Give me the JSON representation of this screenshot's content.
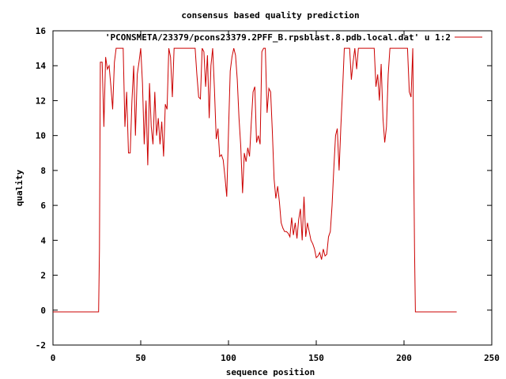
{
  "chart_data": {
    "type": "line",
    "title": "consensus based quality prediction",
    "xlabel": "sequence position",
    "ylabel": "quality",
    "xlim": [
      0,
      250
    ],
    "ylim": [
      -2,
      16
    ],
    "x_ticks": [
      "0",
      "50",
      "100",
      "150",
      "200",
      "250"
    ],
    "y_ticks": [
      "-2",
      "0",
      "2",
      "4",
      "6",
      "8",
      "10",
      "12",
      "14",
      "16"
    ],
    "legend_position": "top-right",
    "grid": false,
    "series": [
      {
        "name": "'PCONSMETA/23379/pcons23379.2PFF_B.rpsblast.8.pdb.local.dat' u 1:2",
        "color": "#cc0000",
        "points": [
          [
            0,
            -0.1
          ],
          [
            26,
            -0.1
          ],
          [
            26.5,
            3.5
          ],
          [
            27,
            14.2
          ],
          [
            28,
            14.2
          ],
          [
            29,
            10.5
          ],
          [
            30,
            14.5
          ],
          [
            31,
            13.8
          ],
          [
            32,
            14
          ],
          [
            33,
            12.8
          ],
          [
            34,
            11.5
          ],
          [
            35,
            14.2
          ],
          [
            36,
            15
          ],
          [
            40,
            15
          ],
          [
            41,
            10.5
          ],
          [
            42,
            12.5
          ],
          [
            43,
            9
          ],
          [
            44,
            9
          ],
          [
            45,
            12
          ],
          [
            46,
            14
          ],
          [
            47,
            10
          ],
          [
            48,
            13.5
          ],
          [
            49,
            14.2
          ],
          [
            50,
            15
          ],
          [
            51,
            13
          ],
          [
            52,
            9.5
          ],
          [
            53,
            12
          ],
          [
            54,
            8.3
          ],
          [
            55,
            13
          ],
          [
            56,
            10.5
          ],
          [
            57,
            9.5
          ],
          [
            58,
            12.5
          ],
          [
            59,
            10
          ],
          [
            60,
            11
          ],
          [
            61,
            9.5
          ],
          [
            62,
            10.8
          ],
          [
            63,
            8.8
          ],
          [
            64,
            11.8
          ],
          [
            65,
            11.5
          ],
          [
            66,
            15
          ],
          [
            67,
            14.5
          ],
          [
            68,
            12.2
          ],
          [
            69,
            15
          ],
          [
            81,
            15
          ],
          [
            82,
            13.5
          ],
          [
            83,
            12.2
          ],
          [
            84,
            12.1
          ],
          [
            85,
            15
          ],
          [
            86,
            14.8
          ],
          [
            87,
            12.8
          ],
          [
            88,
            14.6
          ],
          [
            89,
            11
          ],
          [
            90,
            14
          ],
          [
            91,
            15
          ],
          [
            92,
            12.7
          ],
          [
            93,
            9.8
          ],
          [
            94,
            10.4
          ],
          [
            95,
            8.8
          ],
          [
            96,
            8.9
          ],
          [
            97,
            8.6
          ],
          [
            98,
            7.6
          ],
          [
            99,
            6.5
          ],
          [
            100,
            10.2
          ],
          [
            101,
            13.7
          ],
          [
            102,
            14.5
          ],
          [
            103,
            15
          ],
          [
            104,
            14.6
          ],
          [
            105,
            13.2
          ],
          [
            106,
            11
          ],
          [
            107,
            9.4
          ],
          [
            108,
            6.7
          ],
          [
            109,
            9
          ],
          [
            110,
            8.5
          ],
          [
            111,
            9.3
          ],
          [
            112,
            8.8
          ],
          [
            113,
            10.8
          ],
          [
            114,
            12.5
          ],
          [
            115,
            12.8
          ],
          [
            116,
            9.6
          ],
          [
            117,
            10
          ],
          [
            118,
            9.5
          ],
          [
            119,
            14.8
          ],
          [
            120,
            15
          ],
          [
            121,
            15
          ],
          [
            122,
            11.3
          ],
          [
            123,
            12.7
          ],
          [
            124,
            12.5
          ],
          [
            125,
            10.2
          ],
          [
            126,
            7.5
          ],
          [
            127,
            6.4
          ],
          [
            128,
            7.1
          ],
          [
            129,
            6.2
          ],
          [
            130,
            5
          ],
          [
            131,
            4.7
          ],
          [
            132,
            4.5
          ],
          [
            133,
            4.5
          ],
          [
            134,
            4.4
          ],
          [
            135,
            4.2
          ],
          [
            136,
            5.3
          ],
          [
            137,
            4.3
          ],
          [
            138,
            5
          ],
          [
            139,
            4.1
          ],
          [
            140,
            5.2
          ],
          [
            141,
            5.8
          ],
          [
            142,
            4
          ],
          [
            143,
            6.5
          ],
          [
            144,
            4.2
          ],
          [
            145,
            5
          ],
          [
            146,
            4.5
          ],
          [
            147,
            4
          ],
          [
            148,
            3.8
          ],
          [
            149,
            3.5
          ],
          [
            150,
            3
          ],
          [
            151,
            3.1
          ],
          [
            152,
            3.3
          ],
          [
            153,
            2.9
          ],
          [
            154,
            3.5
          ],
          [
            155,
            3.1
          ],
          [
            156,
            3.2
          ],
          [
            157,
            4.2
          ],
          [
            158,
            4.5
          ],
          [
            159,
            6
          ],
          [
            160,
            8.1
          ],
          [
            161,
            10
          ],
          [
            162,
            10.4
          ],
          [
            163,
            8
          ],
          [
            164,
            10.5
          ],
          [
            165,
            12.6
          ],
          [
            166,
            15
          ],
          [
            169,
            15
          ],
          [
            170,
            13.2
          ],
          [
            171,
            14.2
          ],
          [
            172,
            15
          ],
          [
            173,
            13.8
          ],
          [
            174,
            15
          ],
          [
            183,
            15
          ],
          [
            184,
            12.8
          ],
          [
            185,
            13.5
          ],
          [
            186,
            12
          ],
          [
            187,
            14.1
          ],
          [
            188,
            11
          ],
          [
            189,
            9.6
          ],
          [
            190,
            10.5
          ],
          [
            191,
            13.5
          ],
          [
            192,
            15
          ],
          [
            202,
            15
          ],
          [
            203,
            12.5
          ],
          [
            204,
            12.2
          ],
          [
            205,
            15
          ],
          [
            205.5,
            9
          ],
          [
            206,
            3.5
          ],
          [
            206.5,
            -0.1
          ],
          [
            230,
            -0.1
          ]
        ]
      }
    ]
  }
}
